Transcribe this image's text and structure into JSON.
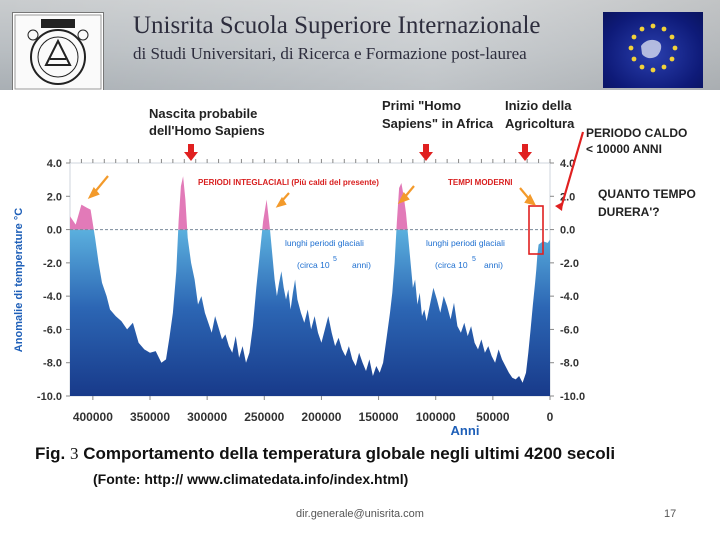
{
  "header": {
    "title_main": "Unisrita  Scuola Superiore Internazionale",
    "title_sub": "di Studi Universitari, di Ricerca e Formazione post-laurea",
    "logo_icon": "university-crest-icon",
    "flag_icon": "eu-flag-icon"
  },
  "slide": {
    "figure_label": "Fig.",
    "figure_number": "3",
    "caption": "Comportamento della temperatura globale negli ultimi 4200 secoli",
    "source": "(Fonte: http:// www.climatedata.info/index.html)",
    "footer_email": "dir.generale@unisrita.com",
    "page_number": "17"
  },
  "annotations": {
    "nascita_line1": "Nascita probabile",
    "nascita_line2": "dell'Homo Sapiens",
    "primi_line1": "Primi \"Homo",
    "primi_line2": "Sapiens\" in Africa",
    "inizio_line1": "Inizio della",
    "inizio_line2": "Agricoltura",
    "periodo_line1": "PERIODO CALDO",
    "periodo_line2": "< 10000 ANNI",
    "quanto_line1": "QUANTO TEMPO",
    "quanto_line2": "DURERA'?",
    "periodi_interglaciali": "PERIODI INTEGLACIALI (Più caldi del presente)",
    "tempi_moderni": "TEMPI MODERNI",
    "glaciali_left_1": "lunghi periodi glaciali",
    "glaciali_left_2": "(circa 10",
    "glaciali_left_exp": "5",
    "glaciali_left_3": "anni)",
    "glaciali_right_1": "lunghi periodi glaciali",
    "glaciali_right_2": "(circa 10",
    "glaciali_right_exp": "5",
    "glaciali_right_3": "anni)"
  },
  "chart_data": {
    "type": "area",
    "title": "",
    "xlabel": "Anni",
    "ylabel": "Anomalie di temperature °C",
    "x_reversed": true,
    "xlim": [
      420000,
      0
    ],
    "ylim": [
      -10,
      4
    ],
    "x_ticks": [
      "400000",
      "350000",
      "300000",
      "250000",
      "200000",
      "150000",
      "100000",
      "50000",
      "0"
    ],
    "x_tick_values": [
      400000,
      350000,
      300000,
      250000,
      200000,
      150000,
      100000,
      50000,
      0
    ],
    "y_ticks": [
      "4.0",
      "2.0",
      "0.0",
      "-2.0",
      "-4.0",
      "-6.0",
      "-8.0",
      "-10.0"
    ],
    "y_tick_values": [
      4,
      2,
      0,
      -2,
      -4,
      -6,
      -8,
      -10
    ],
    "reference_line_y": 0,
    "colors": {
      "cold_top": "#9fe0ee",
      "cold_mid": "#3a86c7",
      "cold_bottom": "#1a3f8f",
      "warm": "#e27ab8",
      "arrow_red": "#e02020",
      "arrow_orange": "#f39a2b",
      "label_blue": "#1e6fd0",
      "label_red": "#d81e1e"
    },
    "series": [
      {
        "x": [
          420000,
          415000,
          410000,
          405000,
          402000,
          398000,
          395000,
          392000,
          388000,
          385000,
          380000,
          375000,
          370000,
          365000,
          360000,
          355000,
          350000,
          345000,
          340000,
          336000,
          333000,
          330000,
          327000,
          325000,
          323000,
          321000,
          319000,
          317000,
          314000,
          311000,
          308000,
          305000,
          302000,
          299000,
          296000,
          293000,
          290000,
          287000,
          284000,
          281000,
          278000,
          275000,
          272000,
          269000,
          266000,
          263000,
          260000,
          257000,
          254000,
          251000,
          248000,
          245000,
          243000,
          241000,
          239000,
          237000,
          235000,
          233000,
          231000,
          229000,
          227000,
          225000,
          223000,
          221000,
          218000,
          215000,
          212000,
          209000,
          206000,
          203000,
          200000,
          197000,
          194000,
          191000,
          188000,
          185000,
          182000,
          179000,
          176000,
          173000,
          170000,
          167000,
          164000,
          161000,
          158000,
          155000,
          152000,
          149000,
          146000,
          143000,
          140000,
          138000,
          136000,
          134000,
          132000,
          130000,
          128000,
          126000,
          124000,
          122000,
          120000,
          118000,
          116000,
          114000,
          112000,
          110000,
          108000,
          105000,
          102000,
          99000,
          96000,
          93000,
          90000,
          87000,
          84000,
          81000,
          78000,
          75000,
          72000,
          69000,
          66000,
          63000,
          60000,
          57000,
          54000,
          51000,
          48000,
          45000,
          42000,
          39000,
          36000,
          33000,
          30000,
          27000,
          24000,
          21000,
          19000,
          17000,
          15000,
          13000,
          12000,
          11000,
          10000,
          8000,
          6000,
          4000,
          2000,
          0
        ],
        "y": [
          0.8,
          0.3,
          1.5,
          1.3,
          1.2,
          -0.5,
          -2.0,
          -3.2,
          -4.0,
          -4.8,
          -5.2,
          -5.5,
          -6.0,
          -5.6,
          -6.8,
          -7.2,
          -7.4,
          -7.3,
          -8.0,
          -7.8,
          -6.5,
          -5.0,
          -2.5,
          0.5,
          2.6,
          3.2,
          1.8,
          -0.5,
          -2.0,
          -3.0,
          -4.5,
          -4.0,
          -5.0,
          -5.6,
          -6.2,
          -5.2,
          -5.9,
          -6.6,
          -6.3,
          -7.0,
          -7.4,
          -6.4,
          -7.7,
          -7.0,
          -8.0,
          -7.4,
          -5.8,
          -3.5,
          -1.5,
          0.5,
          1.8,
          0.0,
          -1.5,
          -3.0,
          -4.0,
          -3.2,
          -2.5,
          -3.5,
          -4.2,
          -3.6,
          -4.8,
          -3.8,
          -3.0,
          -4.2,
          -5.0,
          -5.6,
          -4.8,
          -6.0,
          -5.2,
          -6.2,
          -6.8,
          -6.0,
          -5.2,
          -6.2,
          -7.0,
          -6.5,
          -7.2,
          -7.6,
          -7.0,
          -7.8,
          -8.2,
          -7.4,
          -8.0,
          -8.5,
          -7.8,
          -8.8,
          -8.2,
          -8.6,
          -8.0,
          -6.5,
          -5.0,
          -3.8,
          -2.0,
          0.5,
          2.5,
          2.8,
          2.0,
          1.0,
          -0.5,
          -2.0,
          -3.5,
          -3.0,
          -4.5,
          -3.8,
          -5.2,
          -4.8,
          -5.5,
          -4.5,
          -3.5,
          -4.2,
          -5.0,
          -4.0,
          -4.6,
          -5.4,
          -4.4,
          -5.8,
          -6.2,
          -5.6,
          -6.4,
          -5.8,
          -6.8,
          -7.2,
          -6.6,
          -7.4,
          -7.0,
          -7.6,
          -8.0,
          -7.2,
          -7.8,
          -8.2,
          -8.6,
          -8.9,
          -9.0,
          -8.8,
          -9.2,
          -8.6,
          -7.4,
          -6.0,
          -4.5,
          -3.2,
          -2.4,
          -1.5,
          -0.9,
          -0.8,
          -0.7,
          -0.75,
          -0.8,
          -0.6
        ]
      }
    ]
  }
}
